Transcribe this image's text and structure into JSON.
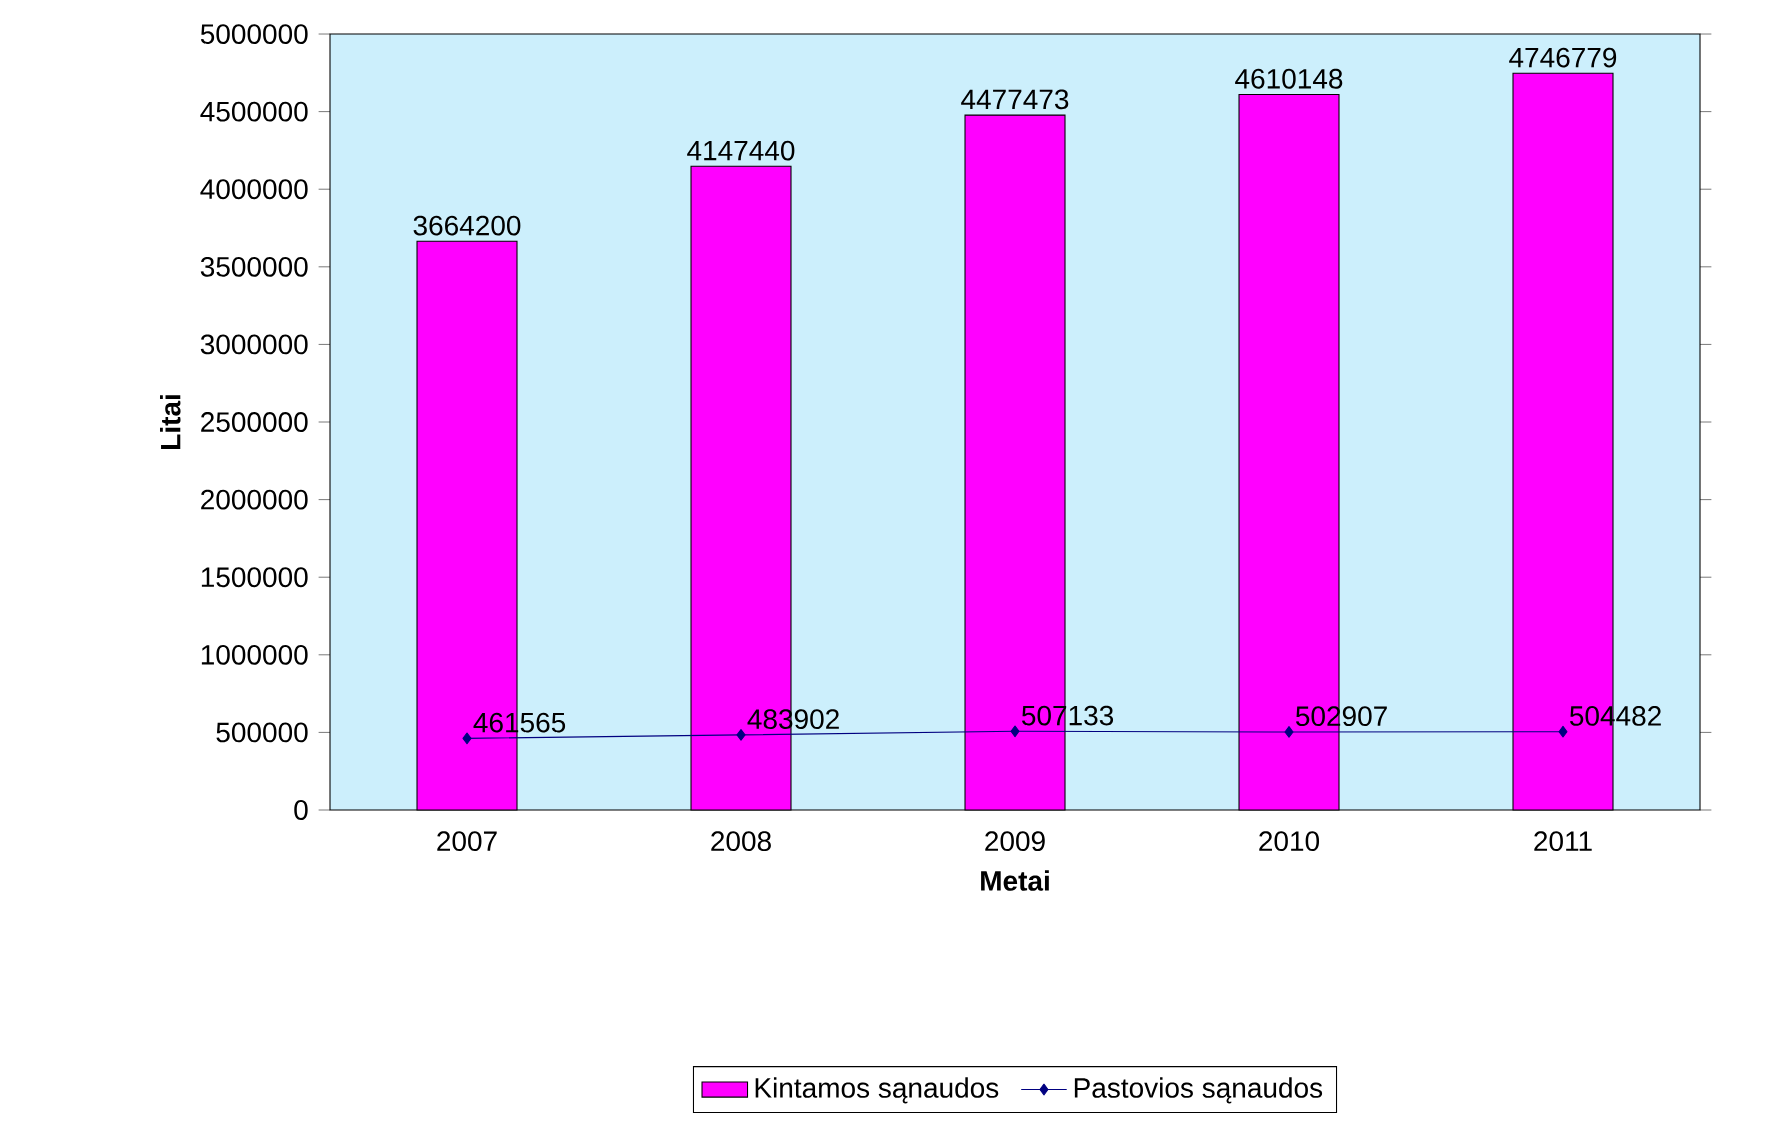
{
  "chart_data": {
    "type": "bar",
    "xlabel": "Metai",
    "ylabel": "Litai",
    "categories": [
      "2007",
      "2008",
      "2009",
      "2010",
      "2011"
    ],
    "series": [
      {
        "name": "Kintamos sąnaudos",
        "color": "#ff00ff",
        "values": [
          3664200,
          4147440,
          4477473,
          4610148,
          4746779
        ]
      },
      {
        "name": "Pastovios sąnaudos",
        "type": "line",
        "color": "#000080",
        "marker": "diamond",
        "values": [
          461565,
          483902,
          507133,
          502907,
          504482
        ]
      }
    ],
    "ylim": [
      0,
      5000000
    ],
    "yticks": [
      0,
      500000,
      1000000,
      1500000,
      2000000,
      2500000,
      3000000,
      3500000,
      4000000,
      4500000,
      5000000
    ],
    "data_labels": true,
    "legend": "bottom",
    "grid": false
  }
}
